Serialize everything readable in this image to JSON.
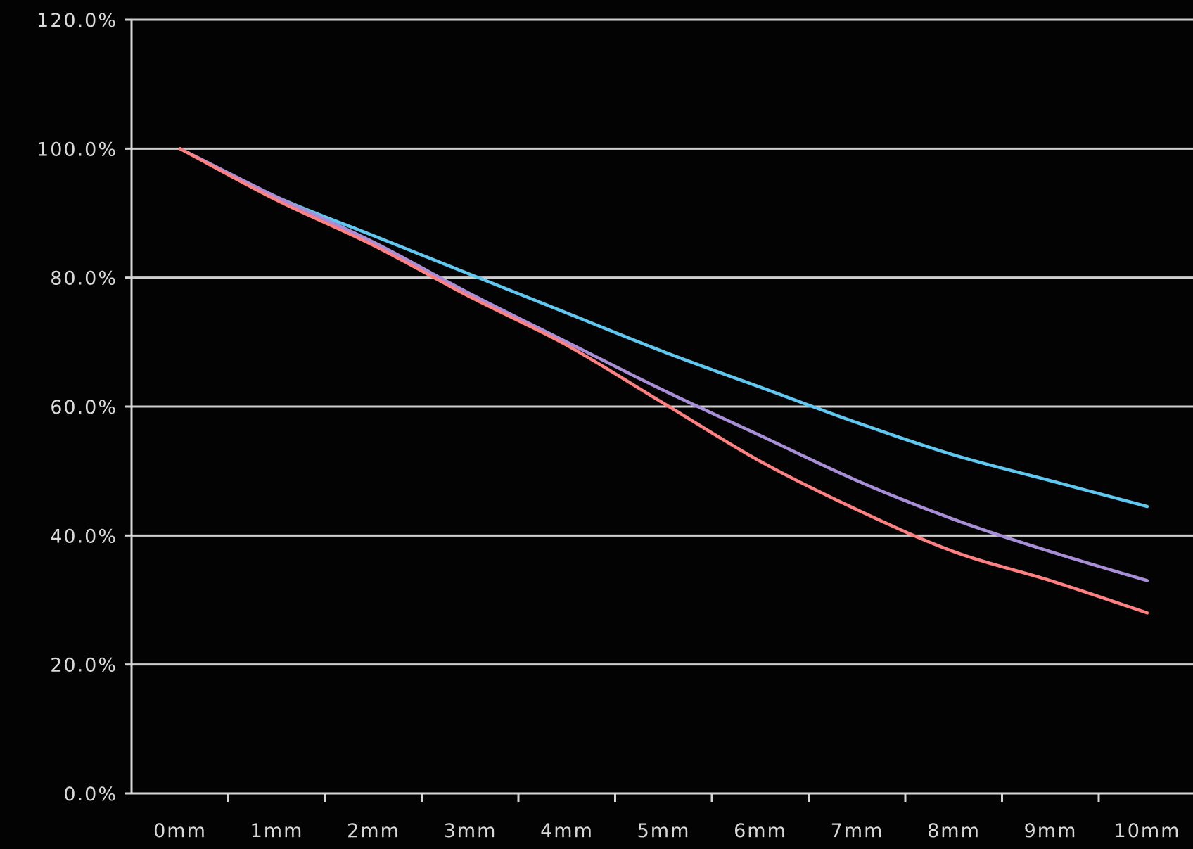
{
  "chart_data": {
    "type": "line",
    "title": "",
    "xlabel": "",
    "ylabel": "",
    "x": [
      0,
      1,
      2,
      3,
      4,
      5,
      6,
      7,
      8,
      9,
      10
    ],
    "categories": [
      "0mm",
      "1mm",
      "2mm",
      "3mm",
      "4mm",
      "5mm",
      "6mm",
      "7mm",
      "8mm",
      "9mm",
      "10mm"
    ],
    "ylim": [
      0,
      120
    ],
    "y_ticks": [
      0,
      20,
      40,
      60,
      80,
      100,
      120
    ],
    "y_tick_labels": [
      "0.0%",
      "20.0%",
      "40.0%",
      "60.0%",
      "80.0%",
      "100.0%",
      "120.0%"
    ],
    "grid": true,
    "legend": false,
    "series": [
      {
        "color": "#5fc8f0",
        "values": [
          100.0,
          92.5,
          86.5,
          80.5,
          74.5,
          68.5,
          63.0,
          57.5,
          52.5,
          48.5,
          44.5
        ]
      },
      {
        "color": "#a88ed6",
        "values": [
          100.0,
          92.5,
          85.5,
          77.5,
          70.0,
          62.5,
          55.5,
          48.5,
          42.5,
          37.5,
          33.0
        ]
      },
      {
        "color": "#ff8080",
        "values": [
          100.0,
          92.0,
          85.0,
          77.0,
          69.5,
          60.5,
          51.5,
          44.0,
          37.5,
          33.0,
          28.0
        ]
      }
    ]
  }
}
